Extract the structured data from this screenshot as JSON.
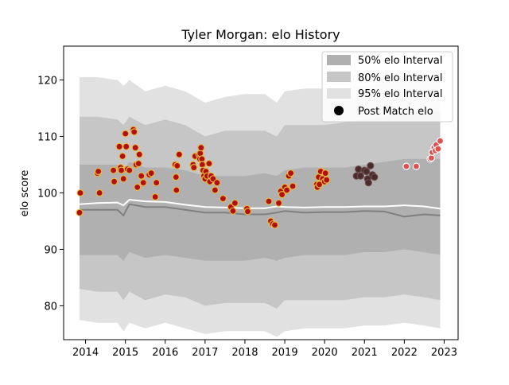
{
  "chart_data": {
    "type": "scatter",
    "title": "Tyler Morgan: elo History",
    "xlabel": "",
    "ylabel": "elo score",
    "xlim": [
      2013.45,
      2023.35
    ],
    "ylim": [
      74,
      126
    ],
    "x_ticks": [
      2014,
      2015,
      2016,
      2017,
      2018,
      2019,
      2020,
      2021,
      2022,
      2023
    ],
    "x_tick_labels": [
      "2014",
      "2015",
      "2016",
      "2017",
      "2018",
      "2019",
      "2020",
      "2021",
      "2022",
      "2023"
    ],
    "y_ticks": [
      80,
      90,
      100,
      110,
      120
    ],
    "y_tick_labels": [
      "80",
      "90",
      "100",
      "110",
      "120"
    ],
    "grid": false,
    "legend_position": "top-right",
    "legend": [
      {
        "label": "50% elo Interval",
        "color": "#b0b0b0"
      },
      {
        "label": "80% elo Interval",
        "color": "#c6c6c6"
      },
      {
        "label": "95% elo Interval",
        "color": "#e1e1e1"
      },
      {
        "label": "Post Match elo",
        "color": "#000000"
      }
    ],
    "colors": {
      "band95": "#e1e1e1",
      "band80": "#c6c6c6",
      "band50": "#b0b0b0",
      "median_line": "#ffffff",
      "mean_line": "#808080",
      "point_2014_2020_fill": "#b01010",
      "point_2014_2020_edge": "#e8b840",
      "point_2021_fill": "#4a2a2a",
      "point_2022_fill": "#e05050"
    },
    "bands": {
      "x": [
        2013.85,
        2014.3,
        2014.8,
        2014.95,
        2015.1,
        2015.5,
        2016.0,
        2016.5,
        2017.0,
        2017.5,
        2018.0,
        2018.5,
        2018.8,
        2019.0,
        2019.5,
        2020.0,
        2020.5,
        2021.0,
        2021.5,
        2022.0,
        2022.5,
        2022.9
      ],
      "p95_upper": [
        120.5,
        120.5,
        120,
        119,
        120,
        118,
        119,
        118,
        116,
        117,
        117.5,
        117.5,
        116,
        118,
        118.5,
        118.5,
        118.5,
        119,
        119.5,
        120.5,
        120,
        120
      ],
      "p80_upper": [
        113.5,
        113.5,
        113,
        112,
        113.5,
        112,
        113,
        112,
        110,
        111,
        111,
        111,
        110,
        112,
        112,
        112,
        112.5,
        113,
        113.5,
        114.5,
        114.5,
        114.5
      ],
      "p50_upper": [
        105,
        105,
        105,
        104,
        105.5,
        104.5,
        104.5,
        104,
        103,
        103,
        103,
        103.5,
        103,
        104,
        104.5,
        104.5,
        104.5,
        105,
        105.5,
        106,
        106,
        106
      ],
      "p50_lower": [
        89,
        89,
        89,
        88,
        89.5,
        88.5,
        89,
        88.5,
        88,
        88,
        88,
        88.5,
        88,
        88.5,
        89,
        89,
        89,
        89.5,
        89.5,
        90,
        89.5,
        89
      ],
      "p80_lower": [
        83,
        82.5,
        82.5,
        81,
        82.5,
        81,
        82,
        81.5,
        80,
        80.5,
        80.5,
        80.5,
        79.5,
        81,
        81,
        81,
        81,
        81.5,
        81.5,
        82,
        81.5,
        81
      ],
      "p95_lower": [
        77.5,
        77,
        77,
        75.5,
        77,
        76,
        77,
        76,
        75,
        75.5,
        75.5,
        75.5,
        74.5,
        75.5,
        76,
        76,
        76,
        76.5,
        76.5,
        77,
        76.5,
        76
      ],
      "median": [
        98,
        98.2,
        98.3,
        97.8,
        98.8,
        98.5,
        98.4,
        97.9,
        97.5,
        97.4,
        97.3,
        97.3,
        97.6,
        97.5,
        97.4,
        97.5,
        97.5,
        97.6,
        97.6,
        97.8,
        97.6,
        97.2
      ],
      "mean": [
        97,
        97,
        97,
        96,
        98,
        97.5,
        97.5,
        97,
        96.5,
        96.5,
        96.2,
        96.2,
        96.5,
        96.8,
        96.5,
        96.6,
        96.6,
        96.8,
        96.7,
        95.8,
        96.2,
        96
      ]
    },
    "series": [
      {
        "name": "Post Match elo",
        "x": [
          2013.85,
          2013.87,
          2014.3,
          2014.32,
          2014.35,
          2014.7,
          2014.72,
          2014.85,
          2014.88,
          2014.9,
          2014.93,
          2014.95,
          2015.0,
          2015.02,
          2015.05,
          2015.1,
          2015.2,
          2015.22,
          2015.25,
          2015.27,
          2015.3,
          2015.33,
          2015.35,
          2015.4,
          2015.45,
          2015.6,
          2015.65,
          2015.75,
          2015.78,
          2016.25,
          2016.27,
          2016.28,
          2016.3,
          2016.35,
          2016.7,
          2016.72,
          2016.75,
          2016.85,
          2016.87,
          2016.88,
          2016.9,
          2016.92,
          2016.93,
          2016.95,
          2016.97,
          2017.0,
          2017.02,
          2017.05,
          2017.1,
          2017.12,
          2017.15,
          2017.2,
          2017.25,
          2017.3,
          2017.45,
          2017.65,
          2017.7,
          2017.75,
          2018.05,
          2018.07,
          2018.6,
          2018.65,
          2018.7,
          2018.75,
          2018.85,
          2018.9,
          2018.93,
          2019.0,
          2019.05,
          2019.1,
          2019.15,
          2019.2,
          2019.8,
          2019.82,
          2019.85,
          2019.87,
          2019.9,
          2019.95,
          2020.0,
          2020.02,
          2020.05,
          2020.8,
          2020.85,
          2020.9,
          2021.0,
          2021.05,
          2021.08,
          2021.1,
          2021.15,
          2021.2,
          2021.25,
          2022.05,
          2022.3,
          2022.65,
          2022.68,
          2022.7,
          2022.75,
          2022.78,
          2022.8,
          2022.85,
          2022.9
        ],
        "y": [
          96.5,
          100,
          103.5,
          103.8,
          100,
          104,
          102,
          108.2,
          104.5,
          104,
          106.5,
          102.5,
          110.5,
          108.2,
          104.2,
          104,
          111.2,
          110.8,
          108,
          105,
          101,
          105.2,
          106.8,
          103,
          101.8,
          103.2,
          103.5,
          99.3,
          101.8,
          105,
          102.8,
          100.5,
          104.8,
          106.8,
          105,
          104.5,
          106.5,
          106.8,
          106,
          107,
          108,
          106,
          105,
          104,
          103,
          102.5,
          103.8,
          103,
          105.2,
          102,
          103,
          102.5,
          100.5,
          101.8,
          99,
          97.5,
          96.8,
          98.2,
          97.2,
          96.7,
          98.5,
          95,
          94.5,
          94.3,
          98.2,
          100.3,
          99.7,
          101,
          100.5,
          103,
          103.5,
          101.2,
          101.5,
          101,
          102.8,
          101.5,
          103.8,
          102.5,
          102,
          103.5,
          102.3,
          103,
          104.2,
          103,
          104,
          103.8,
          102.5,
          101.8,
          104.8,
          103.2,
          102.8,
          104.7,
          104.7,
          106,
          106.2,
          107.2,
          108,
          107.5,
          108.5,
          107.8,
          109.2
        ]
      }
    ]
  }
}
